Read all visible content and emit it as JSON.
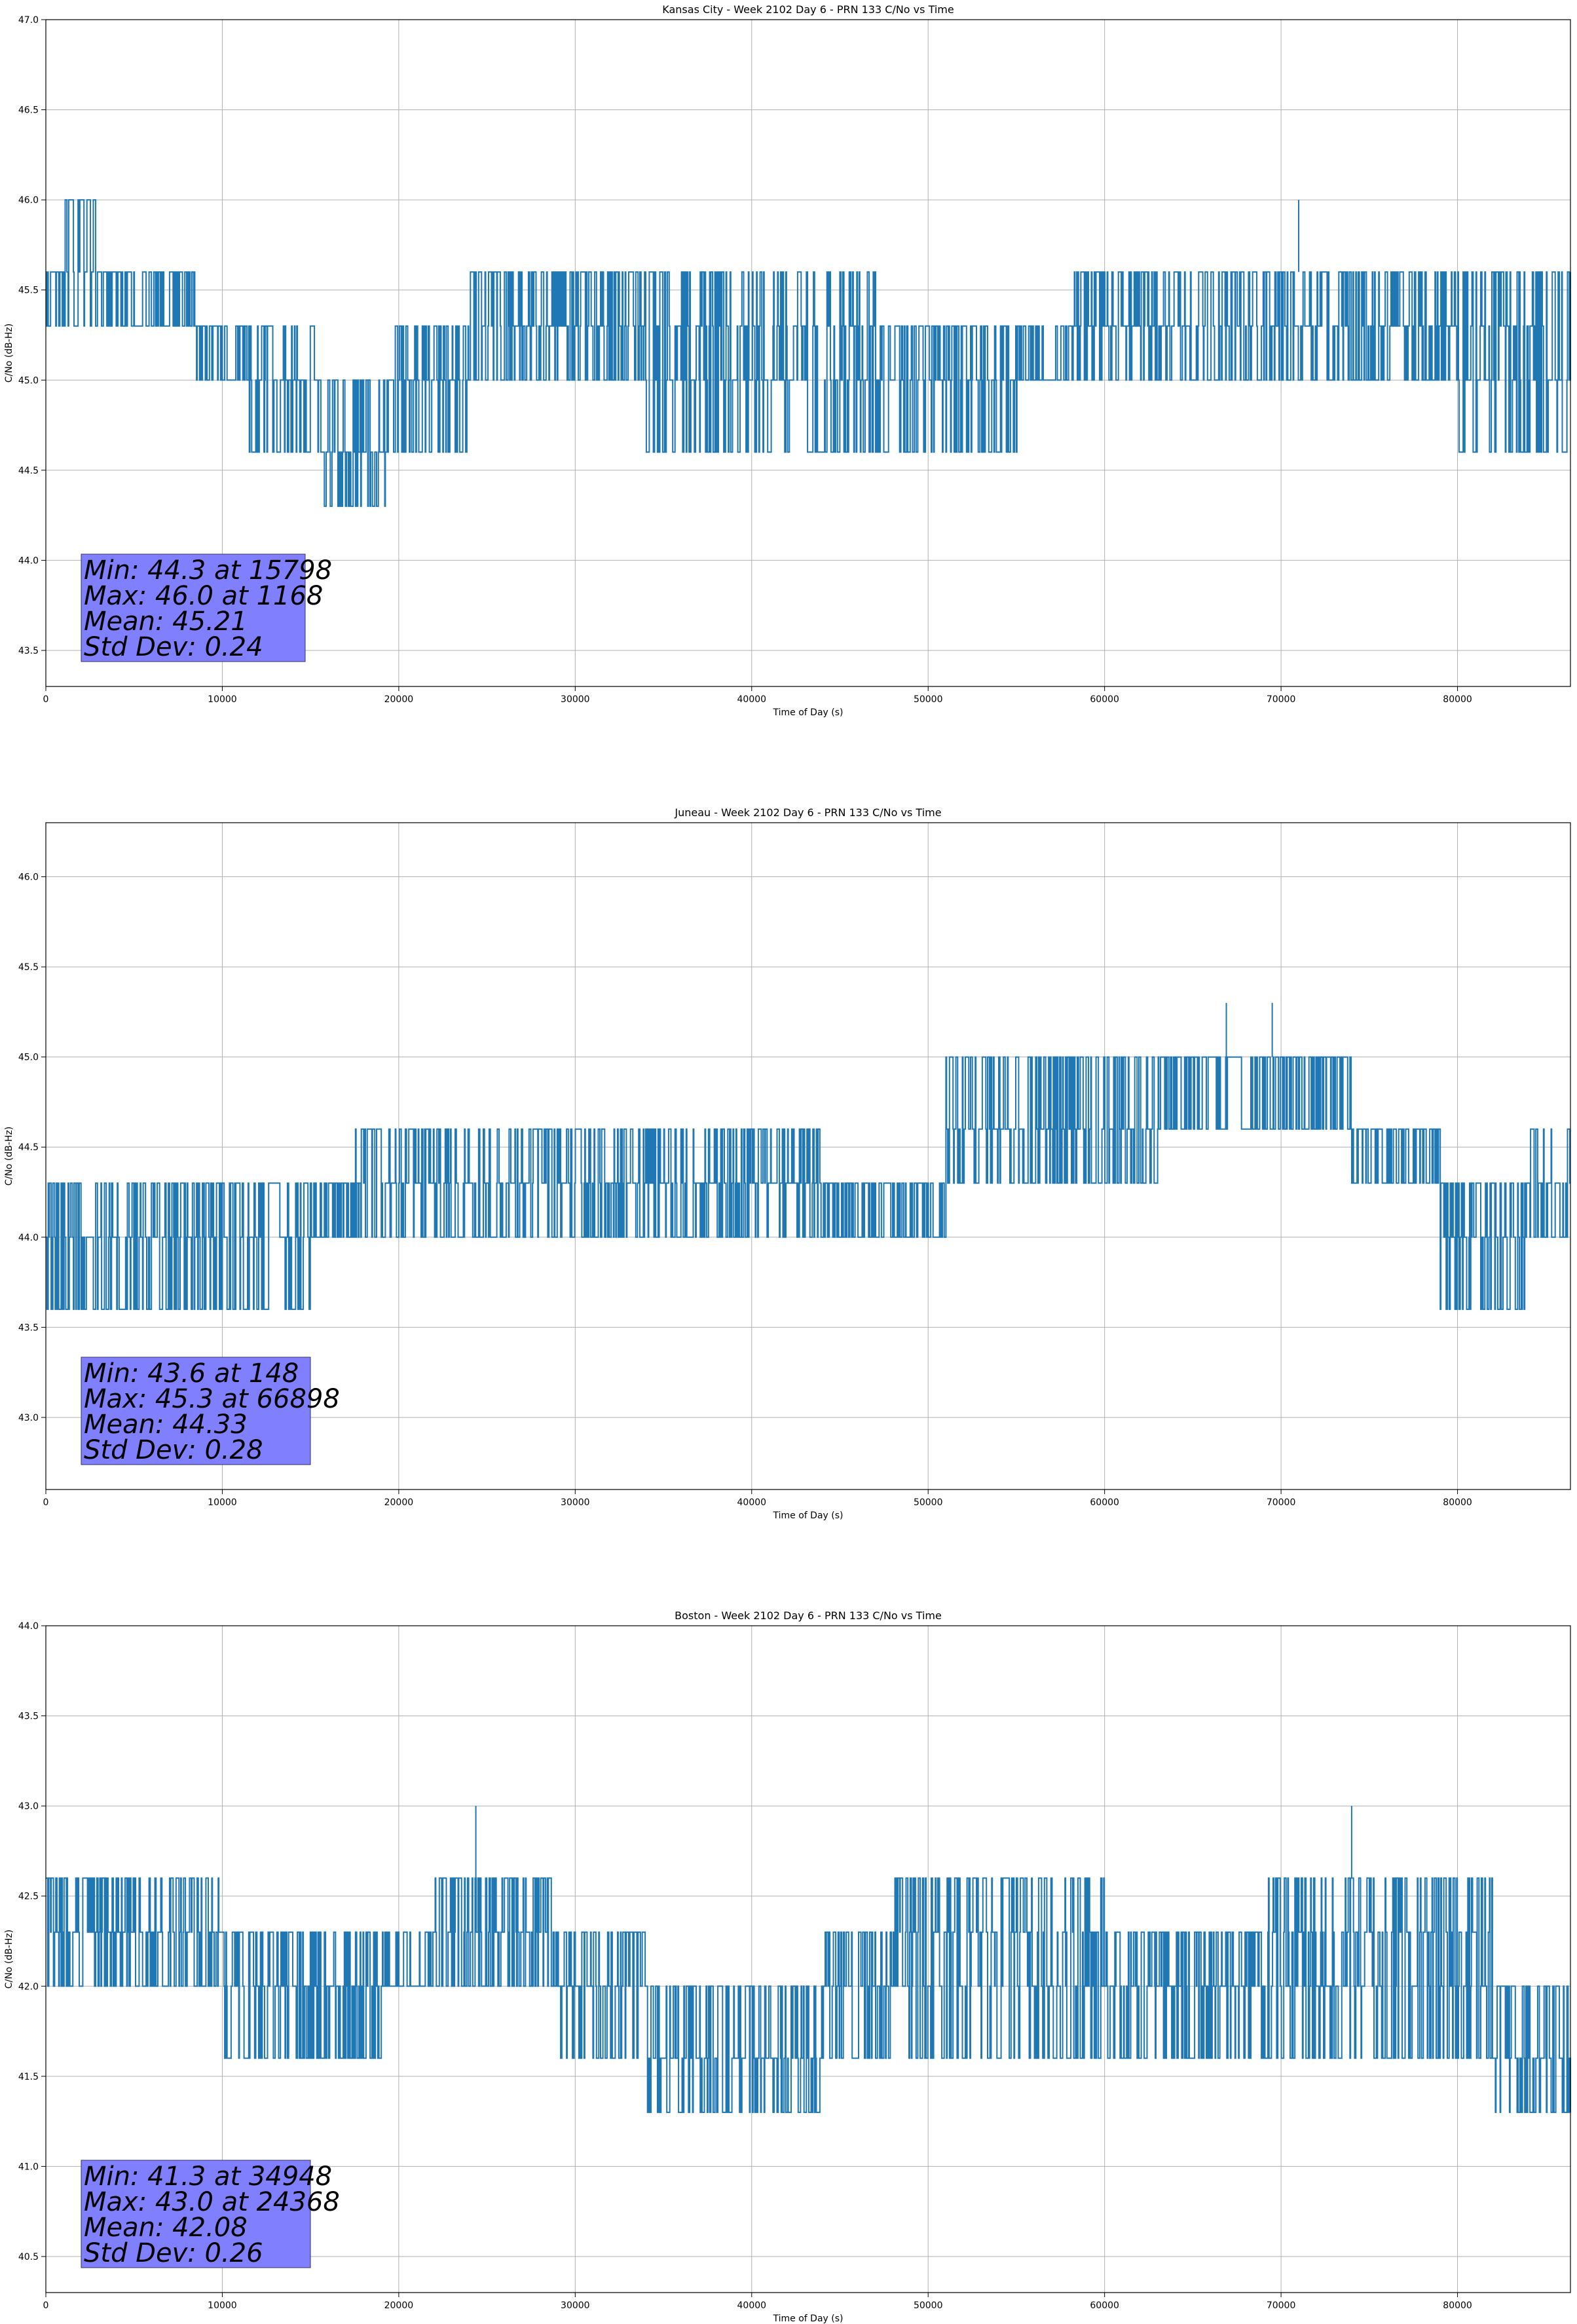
{
  "chart_data": [
    {
      "type": "line",
      "title": "Kansas City - Week 2102 Day 6 - PRN 133 C/No vs Time",
      "xlabel": "Time of Day (s)",
      "ylabel": "C/No (dB-Hz)",
      "xlim": [
        0,
        86400
      ],
      "ylim": [
        43.3,
        47.0
      ],
      "x_ticks": [
        0,
        10000,
        20000,
        30000,
        40000,
        50000,
        60000,
        70000,
        80000
      ],
      "y_ticks": [
        "43.5",
        "44.0",
        "44.5",
        "45.0",
        "45.5",
        "46.0",
        "46.5",
        "47.0"
      ],
      "grid": true,
      "levels": [
        44.3,
        44.6,
        45.0,
        45.3,
        45.6,
        46.0
      ],
      "segments": [
        {
          "x": [
            0,
            1000
          ],
          "levels": [
            45.3,
            45.6
          ]
        },
        {
          "x": [
            1000,
            2800
          ],
          "levels": [
            45.3,
            45.6,
            46.0
          ]
        },
        {
          "x": [
            2800,
            8500
          ],
          "levels": [
            45.3,
            45.6
          ]
        },
        {
          "x": [
            8500,
            11500
          ],
          "levels": [
            45.0,
            45.3
          ]
        },
        {
          "x": [
            11500,
            15500
          ],
          "levels": [
            44.6,
            45.0,
            45.3
          ]
        },
        {
          "x": [
            15500,
            19500
          ],
          "levels": [
            44.3,
            44.6,
            45.0
          ]
        },
        {
          "x": [
            19500,
            24000
          ],
          "levels": [
            44.6,
            45.0,
            45.3
          ]
        },
        {
          "x": [
            24000,
            34000
          ],
          "levels": [
            45.0,
            45.3,
            45.6
          ]
        },
        {
          "x": [
            34000,
            47000
          ],
          "levels": [
            44.6,
            45.0,
            45.3,
            45.6
          ]
        },
        {
          "x": [
            47000,
            55000
          ],
          "levels": [
            44.6,
            45.0,
            45.3
          ]
        },
        {
          "x": [
            55000,
            58000
          ],
          "levels": [
            45.0,
            45.3
          ]
        },
        {
          "x": [
            58000,
            80000
          ],
          "levels": [
            45.0,
            45.3,
            45.6
          ]
        },
        {
          "x": [
            80000,
            86400
          ],
          "levels": [
            44.6,
            45.0,
            45.3,
            45.6
          ]
        }
      ],
      "spikes": [
        {
          "x": 71000,
          "y": 46.0
        }
      ],
      "stats": {
        "min": "Min: 44.3 at 15798",
        "max": "Max: 46.0 at 1168",
        "mean": "Mean: 45.21",
        "std": "Std Dev: 0.24"
      }
    },
    {
      "type": "line",
      "title": "Juneau - Week 2102 Day 6 - PRN 133 C/No vs Time",
      "xlabel": "Time of Day (s)",
      "ylabel": "C/No (dB-Hz)",
      "xlim": [
        0,
        86400
      ],
      "ylim": [
        42.6,
        46.3
      ],
      "x_ticks": [
        0,
        10000,
        20000,
        30000,
        40000,
        50000,
        60000,
        70000,
        80000
      ],
      "y_ticks": [
        "43.0",
        "43.5",
        "44.0",
        "44.5",
        "45.0",
        "45.5",
        "46.0"
      ],
      "grid": true,
      "levels": [
        43.6,
        44.0,
        44.3,
        44.6,
        45.0,
        45.3
      ],
      "segments": [
        {
          "x": [
            0,
            15000
          ],
          "levels": [
            43.6,
            44.0,
            44.3
          ]
        },
        {
          "x": [
            15000,
            17500
          ],
          "levels": [
            44.0,
            44.3
          ]
        },
        {
          "x": [
            17500,
            44000
          ],
          "levels": [
            44.0,
            44.3,
            44.6
          ]
        },
        {
          "x": [
            44000,
            51000
          ],
          "levels": [
            44.0,
            44.3
          ]
        },
        {
          "x": [
            51000,
            63000
          ],
          "levels": [
            44.3,
            44.6,
            45.0
          ]
        },
        {
          "x": [
            63000,
            74000
          ],
          "levels": [
            44.6,
            45.0
          ]
        },
        {
          "x": [
            74000,
            79000
          ],
          "levels": [
            44.3,
            44.6
          ]
        },
        {
          "x": [
            79000,
            84000
          ],
          "levels": [
            43.6,
            44.0,
            44.3
          ]
        },
        {
          "x": [
            84000,
            86400
          ],
          "levels": [
            44.0,
            44.3,
            44.6
          ]
        }
      ],
      "spikes": [
        {
          "x": 66898,
          "y": 45.3
        },
        {
          "x": 69500,
          "y": 45.3
        }
      ],
      "stats": {
        "min": "Min: 43.6 at 148",
        "max": "Max: 45.3 at 66898",
        "mean": "Mean: 44.33",
        "std": "Std Dev: 0.28"
      }
    },
    {
      "type": "line",
      "title": "Boston - Week 2102 Day 6 - PRN 133 C/No vs Time",
      "xlabel": "Time of Day (s)",
      "ylabel": "C/No (dB-Hz)",
      "xlim": [
        0,
        86400
      ],
      "ylim": [
        40.3,
        44.0
      ],
      "x_ticks": [
        0,
        10000,
        20000,
        30000,
        40000,
        50000,
        60000,
        70000,
        80000
      ],
      "y_ticks": [
        "40.5",
        "41.0",
        "41.5",
        "42.0",
        "42.5",
        "43.0",
        "43.5",
        "44.0"
      ],
      "grid": true,
      "levels": [
        41.3,
        41.6,
        42.0,
        42.3,
        42.6,
        43.0
      ],
      "segments": [
        {
          "x": [
            0,
            10000
          ],
          "levels": [
            42.0,
            42.3,
            42.6
          ]
        },
        {
          "x": [
            10000,
            19000
          ],
          "levels": [
            41.6,
            42.0,
            42.3
          ]
        },
        {
          "x": [
            19000,
            22000
          ],
          "levels": [
            42.0,
            42.3
          ]
        },
        {
          "x": [
            22000,
            29000
          ],
          "levels": [
            42.0,
            42.3,
            42.6
          ]
        },
        {
          "x": [
            29000,
            34000
          ],
          "levels": [
            41.6,
            42.0,
            42.3
          ]
        },
        {
          "x": [
            34000,
            44000
          ],
          "levels": [
            41.3,
            41.6,
            42.0
          ]
        },
        {
          "x": [
            44000,
            48000
          ],
          "levels": [
            41.6,
            42.0,
            42.3
          ]
        },
        {
          "x": [
            48000,
            60000
          ],
          "levels": [
            41.6,
            42.0,
            42.3,
            42.6
          ]
        },
        {
          "x": [
            60000,
            69000
          ],
          "levels": [
            41.6,
            42.0,
            42.3
          ]
        },
        {
          "x": [
            69000,
            82000
          ],
          "levels": [
            41.6,
            42.0,
            42.3,
            42.6
          ]
        },
        {
          "x": [
            82000,
            86400
          ],
          "levels": [
            41.3,
            41.6,
            42.0
          ]
        }
      ],
      "spikes": [
        {
          "x": 24368,
          "y": 43.0
        },
        {
          "x": 74000,
          "y": 43.0
        }
      ],
      "stats": {
        "min": "Min: 41.3 at 34948",
        "max": "Max: 43.0 at 24368",
        "mean": "Mean: 42.08",
        "std": "Std Dev: 0.26"
      }
    }
  ]
}
